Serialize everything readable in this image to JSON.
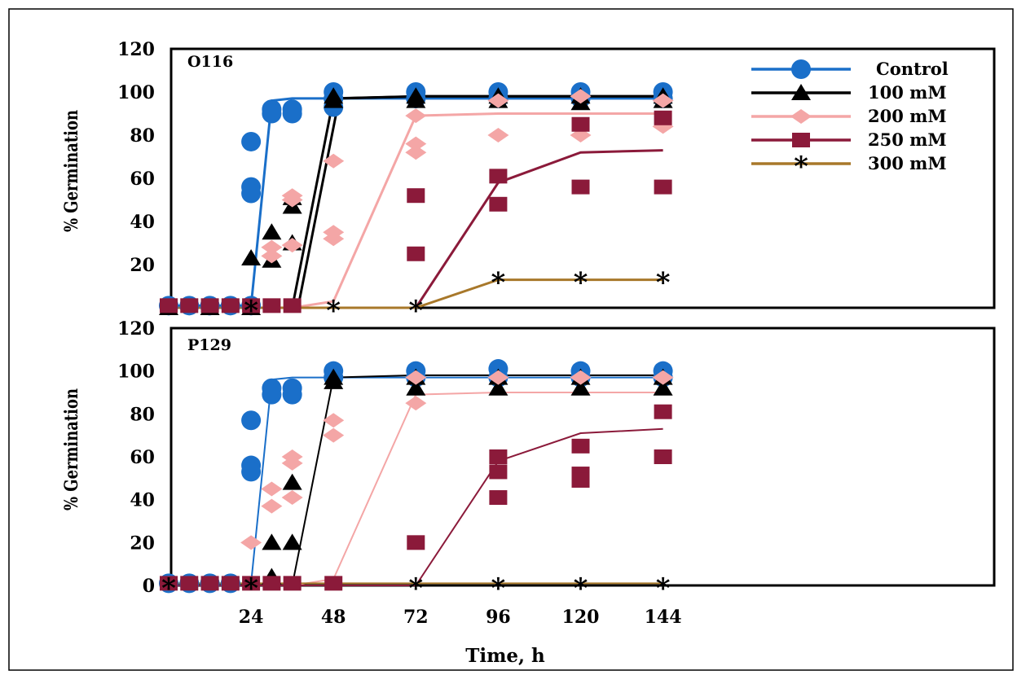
{
  "chart_data": [
    {
      "type": "line",
      "panel_label": "O116",
      "ylabel": "% Germination",
      "xlabel": "",
      "xlim": [
        0,
        240
      ],
      "ylim": [
        0,
        120
      ],
      "yticks": [
        "120",
        "100",
        "80",
        "60",
        "40",
        "20"
      ],
      "xticks": [],
      "legend_position": "top-right",
      "series": [
        {
          "name": "Control",
          "color": "#1a6fc9",
          "marker": "circle",
          "line": [
            [
              0,
              1
            ],
            [
              6,
              1
            ],
            [
              12,
              1
            ],
            [
              18,
              1
            ],
            [
              24,
              1
            ],
            [
              30,
              96
            ],
            [
              36,
              97
            ],
            [
              48,
              97
            ],
            [
              72,
              97
            ],
            [
              96,
              97
            ],
            [
              120,
              97
            ],
            [
              144,
              97
            ]
          ],
          "points": [
            [
              0,
              1
            ],
            [
              6,
              1
            ],
            [
              12,
              1
            ],
            [
              18,
              1
            ],
            [
              24,
              1
            ],
            [
              24,
              77
            ],
            [
              24,
              56
            ],
            [
              24,
              53
            ],
            [
              30,
              92
            ],
            [
              30,
              90
            ],
            [
              36,
              92
            ],
            [
              36,
              90
            ],
            [
              48,
              100
            ],
            [
              48,
              97
            ],
            [
              48,
              93
            ],
            [
              72,
              100
            ],
            [
              72,
              97
            ],
            [
              96,
              100
            ],
            [
              96,
              97
            ],
            [
              120,
              100
            ],
            [
              120,
              97
            ],
            [
              144,
              100
            ],
            [
              144,
              97
            ]
          ]
        },
        {
          "name": "100 mM",
          "color": "#000000",
          "marker": "triangle",
          "line": [
            [
              0,
              0
            ],
            [
              24,
              0
            ],
            [
              36,
              0
            ],
            [
              48,
              97
            ],
            [
              72,
              98
            ],
            [
              96,
              98
            ],
            [
              120,
              98
            ],
            [
              144,
              98
            ]
          ],
          "points": [
            [
              0,
              0
            ],
            [
              12,
              0
            ],
            [
              24,
              23
            ],
            [
              24,
              0
            ],
            [
              30,
              35
            ],
            [
              30,
              22
            ],
            [
              36,
              51
            ],
            [
              36,
              47
            ],
            [
              36,
              30
            ],
            [
              48,
              98
            ],
            [
              48,
              96
            ],
            [
              72,
              98
            ],
            [
              72,
              96
            ],
            [
              96,
              98
            ],
            [
              96,
              96
            ],
            [
              120,
              98
            ],
            [
              120,
              95
            ],
            [
              144,
              98
            ],
            [
              144,
              96
            ]
          ]
        },
        {
          "name": "200 mM",
          "color": "#f4a6a6",
          "marker": "diamond",
          "line": [
            [
              0,
              0
            ],
            [
              24,
              0
            ],
            [
              36,
              0
            ],
            [
              48,
              3
            ],
            [
              72,
              89
            ],
            [
              96,
              90
            ],
            [
              120,
              90
            ],
            [
              144,
              90
            ]
          ],
          "points": [
            [
              30,
              28
            ],
            [
              30,
              24
            ],
            [
              36,
              52
            ],
            [
              36,
              50
            ],
            [
              36,
              29
            ],
            [
              48,
              68
            ],
            [
              48,
              35
            ],
            [
              48,
              32
            ],
            [
              72,
              89
            ],
            [
              72,
              76
            ],
            [
              72,
              72
            ],
            [
              96,
              96
            ],
            [
              96,
              80
            ],
            [
              120,
              98
            ],
            [
              120,
              80
            ],
            [
              144,
              96
            ],
            [
              144,
              84
            ]
          ]
        },
        {
          "name": "250 mM",
          "color": "#8b1a3a",
          "marker": "square",
          "line": [
            [
              0,
              0
            ],
            [
              24,
              0
            ],
            [
              36,
              0
            ],
            [
              48,
              0
            ],
            [
              72,
              0
            ],
            [
              96,
              58
            ],
            [
              120,
              72
            ],
            [
              144,
              73
            ]
          ],
          "points": [
            [
              0,
              1
            ],
            [
              6,
              1
            ],
            [
              12,
              1
            ],
            [
              18,
              1
            ],
            [
              24,
              1
            ],
            [
              30,
              1
            ],
            [
              36,
              1
            ],
            [
              72,
              52
            ],
            [
              72,
              25
            ],
            [
              96,
              61
            ],
            [
              96,
              48
            ],
            [
              120,
              85
            ],
            [
              120,
              56
            ],
            [
              144,
              88
            ],
            [
              144,
              56
            ]
          ]
        },
        {
          "name": "300 mM",
          "color": "#a8782a",
          "marker": "asterisk",
          "line": [
            [
              0,
              0
            ],
            [
              24,
              0
            ],
            [
              48,
              0
            ],
            [
              72,
              0
            ],
            [
              96,
              13
            ],
            [
              120,
              13
            ],
            [
              144,
              13
            ]
          ],
          "points": [
            [
              24,
              0
            ],
            [
              48,
              0
            ],
            [
              72,
              0
            ],
            [
              96,
              13
            ],
            [
              120,
              13
            ],
            [
              144,
              13
            ]
          ]
        }
      ]
    },
    {
      "type": "line",
      "panel_label": "P129",
      "ylabel": "% Germination",
      "xlabel": "Time, h",
      "xlim": [
        0,
        240
      ],
      "ylim": [
        0,
        120
      ],
      "yticks": [
        "120",
        "100",
        "80",
        "60",
        "40",
        "20",
        "0"
      ],
      "xticks": [
        "24",
        "48",
        "72",
        "96",
        "120",
        "144"
      ],
      "series": [
        {
          "name": "Control",
          "color": "#1a6fc9",
          "marker": "circle",
          "line": [
            [
              0,
              1
            ],
            [
              6,
              1
            ],
            [
              12,
              1
            ],
            [
              18,
              1
            ],
            [
              24,
              1
            ],
            [
              30,
              96
            ],
            [
              36,
              97
            ],
            [
              48,
              97
            ],
            [
              72,
              97
            ],
            [
              96,
              97
            ],
            [
              120,
              97
            ],
            [
              144,
              97
            ]
          ],
          "points": [
            [
              0,
              1
            ],
            [
              6,
              1
            ],
            [
              12,
              1
            ],
            [
              18,
              1
            ],
            [
              24,
              77
            ],
            [
              24,
              56
            ],
            [
              24,
              53
            ],
            [
              30,
              92
            ],
            [
              30,
              89
            ],
            [
              36,
              92
            ],
            [
              36,
              89
            ],
            [
              48,
              100
            ],
            [
              48,
              97
            ],
            [
              72,
              100
            ],
            [
              72,
              97
            ],
            [
              96,
              101
            ],
            [
              96,
              97
            ],
            [
              120,
              100
            ],
            [
              120,
              97
            ],
            [
              144,
              100
            ],
            [
              144,
              97
            ]
          ]
        },
        {
          "name": "100 mM",
          "color": "#000000",
          "marker": "triangle",
          "line": [
            [
              0,
              0
            ],
            [
              24,
              0
            ],
            [
              36,
              0
            ],
            [
              48,
              97
            ],
            [
              72,
              98
            ],
            [
              96,
              98
            ],
            [
              120,
              98
            ],
            [
              144,
              98
            ]
          ],
          "points": [
            [
              30,
              4
            ],
            [
              30,
              20
            ],
            [
              36,
              48
            ],
            [
              36,
              20
            ],
            [
              48,
              97
            ],
            [
              48,
              95
            ],
            [
              72,
              97
            ],
            [
              72,
              92
            ],
            [
              96,
              97
            ],
            [
              96,
              92
            ],
            [
              120,
              97
            ],
            [
              120,
              92
            ],
            [
              144,
              97
            ],
            [
              144,
              92
            ]
          ]
        },
        {
          "name": "200 mM",
          "color": "#f4a6a6",
          "marker": "diamond",
          "line": [
            [
              0,
              0
            ],
            [
              36,
              0
            ],
            [
              48,
              3
            ],
            [
              72,
              89
            ],
            [
              96,
              90
            ],
            [
              120,
              90
            ],
            [
              144,
              90
            ]
          ],
          "points": [
            [
              24,
              20
            ],
            [
              30,
              45
            ],
            [
              30,
              37
            ],
            [
              36,
              60
            ],
            [
              36,
              57
            ],
            [
              36,
              41
            ],
            [
              48,
              77
            ],
            [
              48,
              70
            ],
            [
              72,
              97
            ],
            [
              72,
              85
            ],
            [
              96,
              97
            ],
            [
              120,
              97
            ],
            [
              144,
              97
            ]
          ]
        },
        {
          "name": "250 mM",
          "color": "#8b1a3a",
          "marker": "square",
          "line": [
            [
              0,
              0
            ],
            [
              24,
              0
            ],
            [
              48,
              0
            ],
            [
              72,
              0
            ],
            [
              96,
              58
            ],
            [
              120,
              71
            ],
            [
              144,
              73
            ]
          ],
          "points": [
            [
              0,
              1
            ],
            [
              6,
              1
            ],
            [
              12,
              1
            ],
            [
              18,
              1
            ],
            [
              24,
              1
            ],
            [
              30,
              1
            ],
            [
              36,
              1
            ],
            [
              48,
              1
            ],
            [
              72,
              20
            ],
            [
              96,
              60
            ],
            [
              96,
              53
            ],
            [
              96,
              41
            ],
            [
              120,
              65
            ],
            [
              120,
              52
            ],
            [
              120,
              49
            ],
            [
              144,
              81
            ],
            [
              144,
              60
            ]
          ]
        },
        {
          "name": "300 mM",
          "color": "#a8782a",
          "marker": "asterisk",
          "line": [
            [
              0,
              1
            ],
            [
              24,
              1
            ],
            [
              48,
              1
            ],
            [
              72,
              1
            ],
            [
              96,
              1
            ],
            [
              120,
              1
            ],
            [
              144,
              1
            ]
          ],
          "points": [
            [
              0,
              0
            ],
            [
              24,
              0
            ],
            [
              72,
              0
            ],
            [
              96,
              0
            ],
            [
              120,
              0
            ],
            [
              144,
              0
            ]
          ]
        }
      ]
    }
  ]
}
